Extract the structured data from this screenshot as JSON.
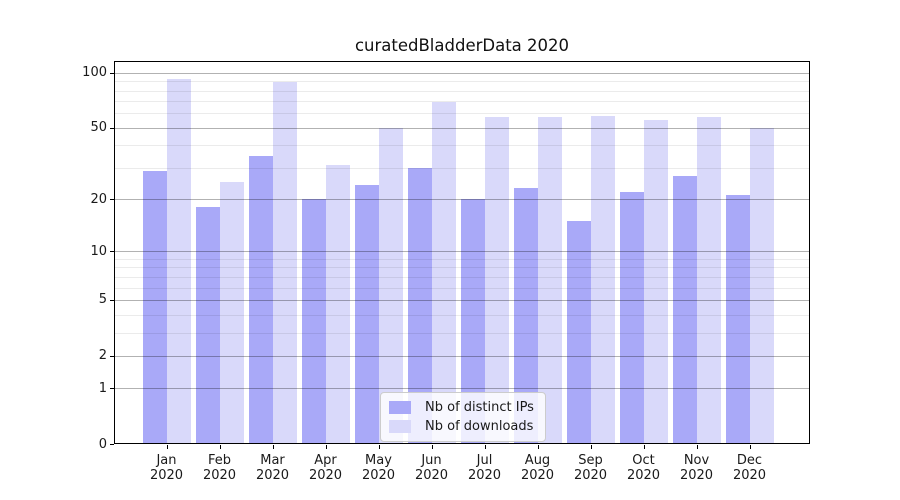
{
  "title": "curatedBladderData 2020",
  "chart_data": {
    "type": "bar",
    "title": "curatedBladderData 2020",
    "categories": [
      "Jan",
      "Feb",
      "Mar",
      "Apr",
      "May",
      "Jun",
      "Jul",
      "Aug",
      "Sep",
      "Oct",
      "Nov",
      "Dec"
    ],
    "x_sublabel": "2020",
    "series": [
      {
        "name": "Nb of distinct IPs",
        "color": "#a9a9f8",
        "values": [
          29,
          18,
          35,
          20,
          24,
          30,
          20,
          23,
          15,
          22,
          27,
          21
        ]
      },
      {
        "name": "Nb of downloads",
        "color": "#d9d9fa",
        "values": [
          93,
          25,
          89,
          31,
          50,
          69,
          57,
          57,
          58,
          55,
          57,
          50
        ]
      }
    ],
    "xlabel": "",
    "ylabel": "",
    "yscale": "symlog",
    "yticks": [
      0,
      1,
      2,
      5,
      10,
      20,
      50,
      100
    ],
    "yticks_minor": [
      3,
      4,
      6,
      7,
      8,
      9,
      30,
      40,
      60,
      70,
      80,
      90
    ],
    "ylim": [
      0,
      116
    ],
    "grid": true,
    "legend_position": "lower center"
  }
}
